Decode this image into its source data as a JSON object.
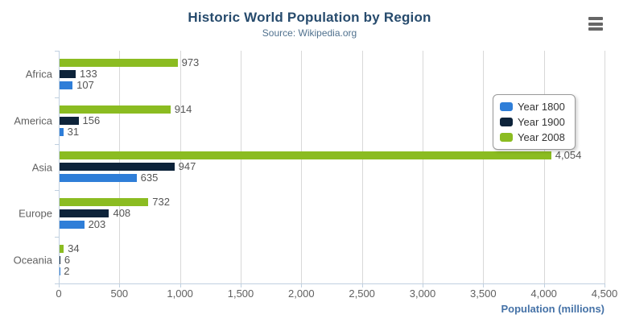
{
  "chart_data": {
    "type": "bar",
    "orientation": "horizontal",
    "title": "Historic World Population by Region",
    "subtitle": "Source: Wikipedia.org",
    "categories": [
      "Africa",
      "America",
      "Asia",
      "Europe",
      "Oceania"
    ],
    "series": [
      {
        "name": "Year 1800",
        "color": "#2f7ed8",
        "values": [
          107,
          31,
          635,
          203,
          2
        ]
      },
      {
        "name": "Year 1900",
        "color": "#0d233a",
        "values": [
          133,
          156,
          947,
          408,
          6
        ]
      },
      {
        "name": "Year 2008",
        "color": "#8bbc21",
        "values": [
          973,
          914,
          4054,
          732,
          34
        ]
      }
    ],
    "bar_order_top_to_bottom": [
      "Year 2008",
      "Year 1900",
      "Year 1800"
    ],
    "data_labels": {
      "Africa": {
        "Year 1800": "107",
        "Year 1900": "133",
        "Year 2008": "973"
      },
      "America": {
        "Year 1800": "31",
        "Year 1900": "156",
        "Year 2008": "914"
      },
      "Asia": {
        "Year 1800": "635",
        "Year 1900": "947",
        "Year 2008": "4,054"
      },
      "Europe": {
        "Year 1800": "203",
        "Year 1900": "408",
        "Year 2008": "732"
      },
      "Oceania": {
        "Year 1800": "2",
        "Year 1900": "6",
        "Year 2008": "34"
      }
    },
    "xlabel": "Population (millions)",
    "xlim": [
      0,
      4500
    ],
    "x_tick_values": [
      0,
      500,
      1000,
      1500,
      2000,
      2500,
      3000,
      3500,
      4000,
      4500
    ],
    "x_tick_labels": [
      "0",
      "500",
      "1,000",
      "1,500",
      "2,000",
      "2,500",
      "3,000",
      "3,500",
      "4,000",
      "4,500"
    ],
    "grid": "vertical-only",
    "legend_position": "right"
  },
  "icons": {
    "menu": "hamburger-icon"
  },
  "colors": {
    "title": "#274b6d",
    "subtitle": "#50718e",
    "axis_title": "#4572a7",
    "axis_line": "#c0d0e0",
    "gridline": "#d8d8d8",
    "tick_label": "#606060",
    "category_label": "#606060",
    "data_label": "#555555",
    "legend_text": "#333333",
    "legend_border": "#999999",
    "menu_icon": "#666666",
    "background": "#ffffff"
  }
}
